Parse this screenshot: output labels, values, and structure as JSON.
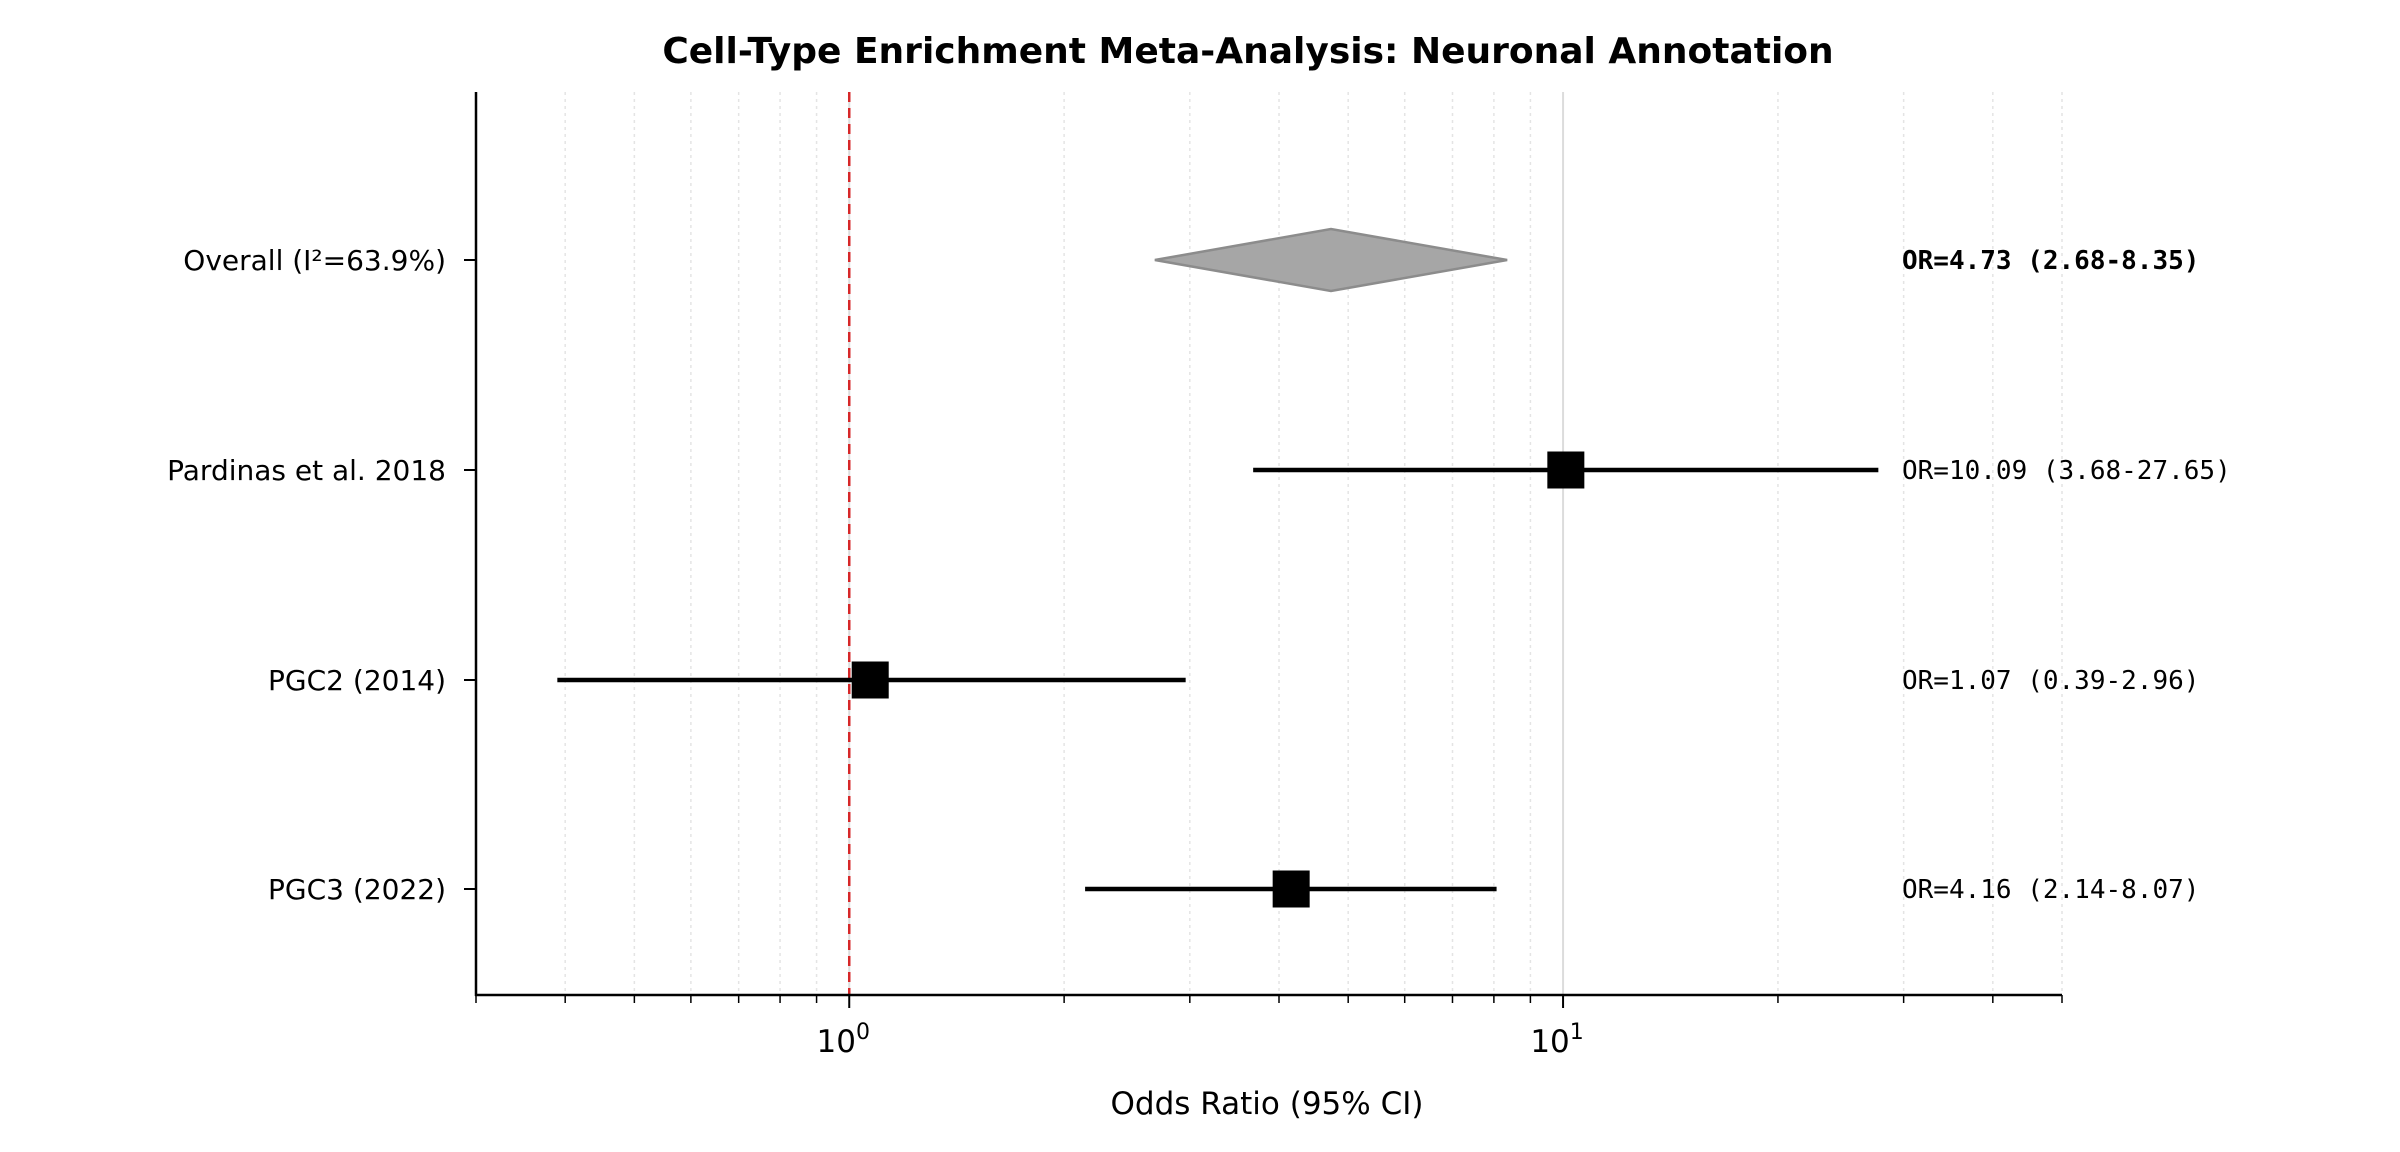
{
  "chart_data": {
    "type": "forest",
    "title": "Cell-Type Enrichment Meta-Analysis: Neuronal Annotation",
    "xlabel": "Odds Ratio (95% CI)",
    "xscale": "log",
    "xlim": [
      0.3,
      50
    ],
    "x_ticks": [
      {
        "base": "10",
        "exp": "0",
        "value": 1
      },
      {
        "base": "10",
        "exp": "1",
        "value": 10
      }
    ],
    "reference_line": 1,
    "reference_color": "#d62728",
    "rows": [
      {
        "label": "Overall (I²=63.9%)",
        "or": 4.73,
        "lower": 2.68,
        "upper": 8.35,
        "annotation": "OR=4.73 (2.68-8.35)",
        "kind": "summary"
      },
      {
        "label": "Pardinas et al. 2018",
        "or": 10.09,
        "lower": 3.68,
        "upper": 27.65,
        "annotation": "OR=10.09 (3.68-27.65)",
        "kind": "study"
      },
      {
        "label": "PGC2 (2014)",
        "or": 1.07,
        "lower": 0.39,
        "upper": 2.96,
        "annotation": "OR=1.07 (0.39-2.96)",
        "kind": "study"
      },
      {
        "label": "PGC3 (2022)",
        "or": 4.16,
        "lower": 2.14,
        "upper": 8.07,
        "annotation": "OR=4.16 (2.14-8.07)",
        "kind": "study"
      }
    ],
    "summary_color": "#a6a6a6",
    "marker_color": "#000000",
    "grid": "vertical-minor"
  }
}
